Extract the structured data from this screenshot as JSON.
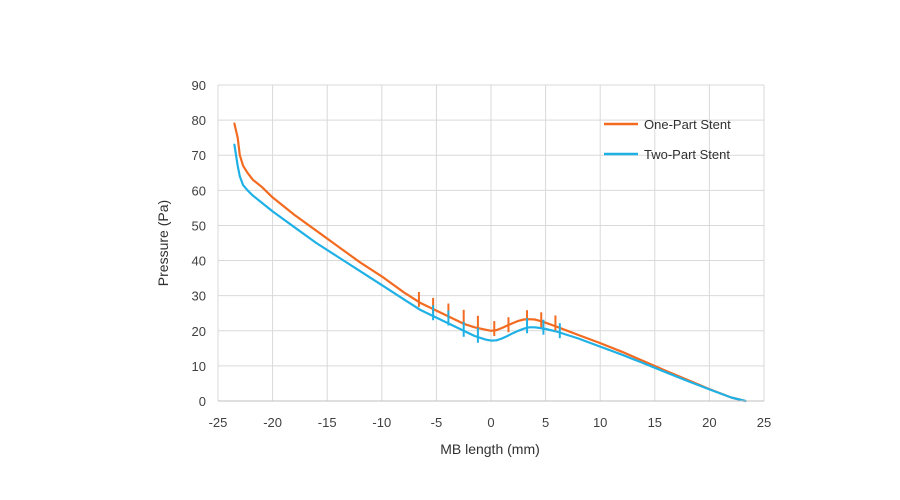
{
  "chart_data": {
    "type": "line",
    "title": "",
    "xlabel": "MB length (mm)",
    "ylabel": "Pressure (Pa)",
    "xlim": [
      -25,
      25
    ],
    "ylim": [
      0,
      90
    ],
    "xticks": [
      -25,
      -20,
      -15,
      -10,
      -5,
      0,
      5,
      10,
      15,
      20,
      25
    ],
    "yticks": [
      0,
      10,
      20,
      30,
      40,
      50,
      60,
      70,
      80,
      90
    ],
    "grid": true,
    "legend_position": "top-right",
    "series": [
      {
        "name": "One-Part Stent",
        "color": "#f26b21",
        "x": [
          -23.5,
          -23.2,
          -23.0,
          -22.7,
          -22.3,
          -21.8,
          -21.0,
          -20.0,
          -18.0,
          -16.0,
          -14.0,
          -12.0,
          -10.0,
          -8.0,
          -6.5,
          -5.5,
          -4.5,
          -3.5,
          -2.5,
          -1.5,
          -0.5,
          0.0,
          0.5,
          1.0,
          1.5,
          2.0,
          2.5,
          3.0,
          3.5,
          4.0,
          4.5,
          5.0,
          6.0,
          7.0,
          8.0,
          10.0,
          12.0,
          14.0,
          16.0,
          18.0,
          20.0,
          22.0,
          23.3
        ],
        "y": [
          79.0,
          75.0,
          70.0,
          67.0,
          65.0,
          63.0,
          61.0,
          58.0,
          53.0,
          48.5,
          44.0,
          39.5,
          35.5,
          31.0,
          28.0,
          26.5,
          25.0,
          23.5,
          22.0,
          21.0,
          20.3,
          20.0,
          20.2,
          20.8,
          21.5,
          22.2,
          22.8,
          23.2,
          23.3,
          23.2,
          22.8,
          22.3,
          21.2,
          20.0,
          18.8,
          16.5,
          14.0,
          11.3,
          8.6,
          6.0,
          3.4,
          1.0,
          0.0
        ]
      },
      {
        "name": "Two-Part Stent",
        "color": "#1fb1e6",
        "x": [
          -23.5,
          -23.2,
          -23.0,
          -22.7,
          -22.3,
          -21.8,
          -21.0,
          -20.0,
          -18.0,
          -16.0,
          -14.0,
          -12.0,
          -10.0,
          -8.0,
          -6.5,
          -5.5,
          -4.5,
          -3.5,
          -2.5,
          -1.5,
          -0.5,
          0.0,
          0.5,
          1.0,
          1.5,
          2.0,
          2.5,
          3.0,
          3.5,
          4.0,
          4.5,
          5.0,
          6.0,
          7.0,
          8.0,
          10.0,
          12.0,
          14.0,
          16.0,
          18.0,
          20.0,
          22.0,
          23.3
        ],
        "y": [
          73.0,
          67.0,
          64.0,
          61.5,
          60.0,
          58.5,
          56.5,
          54.0,
          49.5,
          45.0,
          41.0,
          37.0,
          33.0,
          29.0,
          26.0,
          24.5,
          23.0,
          21.5,
          20.0,
          18.5,
          17.5,
          17.2,
          17.3,
          17.8,
          18.5,
          19.3,
          20.0,
          20.6,
          21.0,
          21.0,
          20.8,
          20.5,
          19.8,
          18.8,
          17.8,
          15.5,
          13.2,
          10.7,
          8.2,
          5.7,
          3.3,
          1.0,
          0.0
        ]
      }
    ],
    "markers": [
      {
        "series": "One-Part Stent",
        "x": [
          -6.6,
          -5.3,
          -3.9,
          -2.5,
          -1.2,
          0.3,
          1.6,
          3.3,
          4.6,
          5.9
        ],
        "y": [
          28.5,
          26.8,
          25.2,
          23.4,
          21.7,
          20.2,
          21.3,
          23.3,
          22.7,
          21.8
        ]
      },
      {
        "series": "Two-Part Stent",
        "x": [
          -5.3,
          -3.9,
          -2.5,
          -1.2,
          3.3,
          4.8,
          6.3
        ],
        "y": [
          24.7,
          23.2,
          20.0,
          18.3,
          21.0,
          20.6,
          19.6
        ]
      }
    ]
  }
}
